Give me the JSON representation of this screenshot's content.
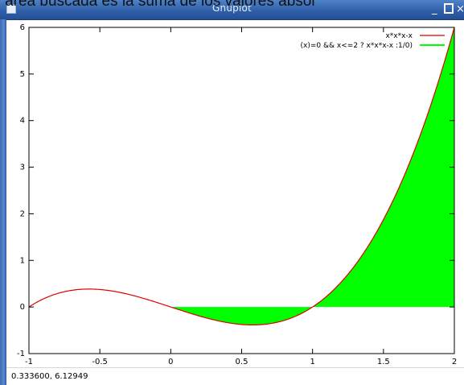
{
  "overlay_caption": "el área buscada es la suma de los valores absol",
  "window": {
    "title": "Gnuplot",
    "minimize_label": "_",
    "maximize_label": "",
    "close_label": "×"
  },
  "status": {
    "coordinates": "0.333600,  6.12949"
  },
  "colors": {
    "curve": "#e00000",
    "fill": "#00ff00",
    "titlebar": "#2f5fa8"
  },
  "chart_data": {
    "type": "area",
    "x_ticks": [
      "-1",
      "-0.5",
      "0",
      "0.5",
      "1",
      "1.5",
      "2"
    ],
    "y_ticks": [
      "-1",
      "0",
      "1",
      "2",
      "3",
      "4",
      "5",
      "6"
    ],
    "xlim": [
      -1,
      2
    ],
    "ylim": [
      -1,
      6
    ],
    "legend_position": "top-right",
    "series": [
      {
        "name": "x*x*x-x",
        "color": "#e00000",
        "kind": "line",
        "domain": [
          -1,
          2
        ]
      },
      {
        "name": "(x)=0 && x<=2 ? x*x*x-x :1/0)",
        "color": "#00ff00",
        "kind": "filled",
        "domain": [
          0,
          2
        ]
      }
    ]
  }
}
